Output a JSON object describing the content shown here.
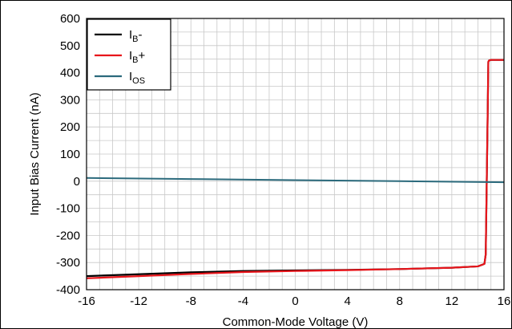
{
  "chart_data": {
    "type": "line",
    "xlabel": "Common-Mode Voltage (V)",
    "ylabel": "Input Bias Current (nA)",
    "xlim": [
      -16,
      16
    ],
    "ylim": [
      -400,
      600
    ],
    "x_ticks": [
      -16,
      -12,
      -8,
      -4,
      0,
      4,
      8,
      12,
      16
    ],
    "y_ticks": [
      -400,
      -300,
      -200,
      -100,
      0,
      100,
      200,
      300,
      400,
      500,
      600
    ],
    "x_tick_labels": [
      "-16",
      "-12",
      "-8",
      "-4",
      "0",
      "4",
      "8",
      "12",
      "16"
    ],
    "y_tick_labels": [
      "-400",
      "-300",
      "-200",
      "-100",
      "0",
      "100",
      "200",
      "300",
      "400",
      "500",
      "600"
    ],
    "minor_x_step": 1,
    "minor_y_step": 50,
    "grid": true,
    "legend_position": "top-left",
    "series": [
      {
        "name_main": "I",
        "name_sub": "B",
        "name_suffix": "-",
        "color": "#000000",
        "x": [
          -16,
          -12,
          -8,
          -4,
          0,
          4,
          8,
          12,
          14,
          14.5,
          14.6,
          14.75,
          14.8,
          14.85,
          15,
          16
        ],
        "y": [
          -350,
          -343,
          -336,
          -331,
          -329,
          -327,
          -324,
          -319,
          -314,
          -305,
          -270,
          250,
          440,
          445,
          447,
          447
        ]
      },
      {
        "name_main": "I",
        "name_sub": "B",
        "name_suffix": "+",
        "color": "#e8151b",
        "x": [
          -16,
          -12,
          -8,
          -4,
          0,
          4,
          8,
          12,
          14,
          14.5,
          14.6,
          14.75,
          14.8,
          14.85,
          15,
          16
        ],
        "y": [
          -358,
          -350,
          -342,
          -335,
          -331,
          -328,
          -324,
          -319,
          -314,
          -305,
          -270,
          250,
          440,
          445,
          447,
          447
        ]
      },
      {
        "name_main": "I",
        "name_sub": "OS",
        "name_suffix": "",
        "color": "#2b6a7c",
        "x": [
          -16,
          -8,
          0,
          8,
          16
        ],
        "y": [
          12,
          8,
          4,
          0,
          -4
        ]
      }
    ]
  }
}
